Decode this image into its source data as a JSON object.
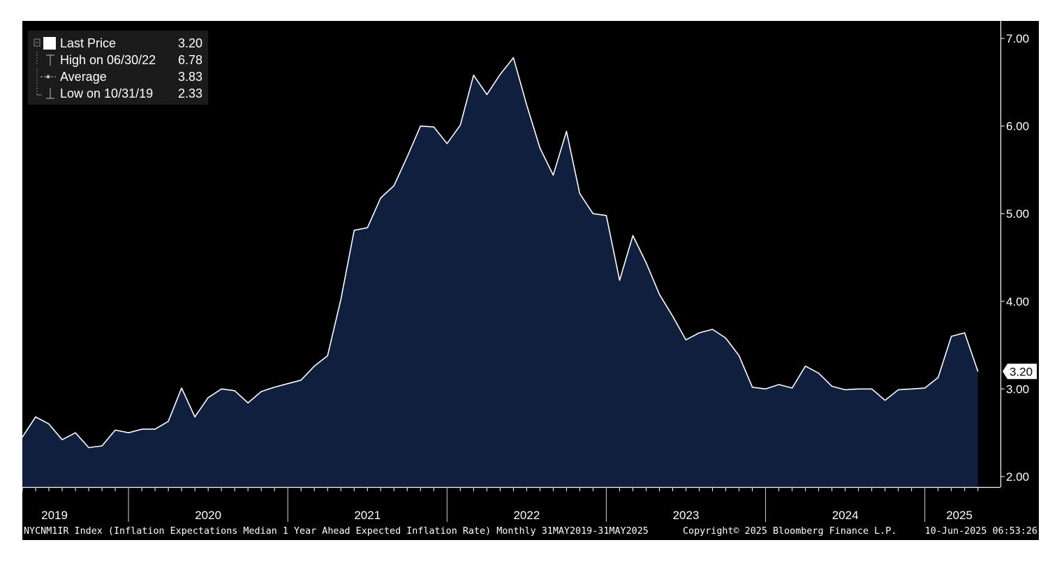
{
  "legend": {
    "items": [
      {
        "label": "Last Price",
        "value": "3.20"
      },
      {
        "label": "High on 06/30/22",
        "value": "6.78"
      },
      {
        "label": "Average",
        "value": "3.83"
      },
      {
        "label": "Low on 10/31/19",
        "value": "2.33"
      }
    ]
  },
  "footer": {
    "description": "NYCNM1IR Index (Inflation Expectations Median 1 Year Ahead Expected Inflation Rate)  Monthly 31MAY2019-31MAY2025",
    "copyright": "Copyright© 2025 Bloomberg Finance L.P.",
    "timestamp": "10-Jun-2025 06:53:26"
  },
  "colors": {
    "background": "#000000",
    "area_fill": "#0f1f3d",
    "line": "#ffffff",
    "legend_bg": "#1b1b1b"
  },
  "chart_data": {
    "type": "area",
    "title": "",
    "xlabel": "",
    "ylabel": "",
    "x": [
      "2019-05",
      "2019-06",
      "2019-07",
      "2019-08",
      "2019-09",
      "2019-10",
      "2019-11",
      "2019-12",
      "2020-01",
      "2020-02",
      "2020-03",
      "2020-04",
      "2020-05",
      "2020-06",
      "2020-07",
      "2020-08",
      "2020-09",
      "2020-10",
      "2020-11",
      "2020-12",
      "2021-01",
      "2021-02",
      "2021-03",
      "2021-04",
      "2021-05",
      "2021-06",
      "2021-07",
      "2021-08",
      "2021-09",
      "2021-10",
      "2021-11",
      "2021-12",
      "2022-01",
      "2022-02",
      "2022-03",
      "2022-04",
      "2022-05",
      "2022-06",
      "2022-07",
      "2022-08",
      "2022-09",
      "2022-10",
      "2022-11",
      "2022-12",
      "2023-01",
      "2023-02",
      "2023-03",
      "2023-04",
      "2023-05",
      "2023-06",
      "2023-07",
      "2023-08",
      "2023-09",
      "2023-10",
      "2023-11",
      "2023-12",
      "2024-01",
      "2024-02",
      "2024-03",
      "2024-04",
      "2024-05",
      "2024-06",
      "2024-07",
      "2024-08",
      "2024-09",
      "2024-10",
      "2024-11",
      "2024-12",
      "2025-01",
      "2025-02",
      "2025-03",
      "2025-04",
      "2025-05"
    ],
    "series": [
      {
        "name": "",
        "values": [
          2.45,
          2.68,
          2.6,
          2.42,
          2.5,
          2.33,
          2.35,
          2.53,
          2.5,
          2.54,
          2.54,
          2.63,
          3.01,
          2.68,
          2.9,
          3.0,
          2.98,
          2.84,
          2.97,
          3.02,
          3.06,
          3.1,
          3.26,
          3.38,
          4.02,
          4.81,
          4.84,
          5.18,
          5.32,
          5.65,
          6.0,
          5.99,
          5.8,
          6.01,
          6.58,
          6.36,
          6.59,
          6.78,
          6.24,
          5.75,
          5.44,
          5.94,
          5.23,
          5.0,
          4.98,
          4.24,
          4.75,
          4.44,
          4.08,
          3.83,
          3.56,
          3.64,
          3.68,
          3.58,
          3.38,
          3.02,
          3.0,
          3.05,
          3.01,
          3.26,
          3.18,
          3.03,
          2.99,
          3.0,
          3.0,
          2.87,
          2.99,
          3.0,
          3.01,
          3.13,
          3.6,
          3.64,
          3.2
        ]
      }
    ],
    "ylim": [
      1.88,
      7.2
    ],
    "yticks": [
      "2.00",
      "3.00",
      "4.00",
      "5.00",
      "6.00",
      "7.00"
    ],
    "xtick_labels": [
      "2019",
      "2020",
      "2021",
      "2022",
      "2023",
      "2024",
      "2025"
    ],
    "last_value_label": "3.20",
    "grid": false,
    "legend_position": "top-left"
  }
}
